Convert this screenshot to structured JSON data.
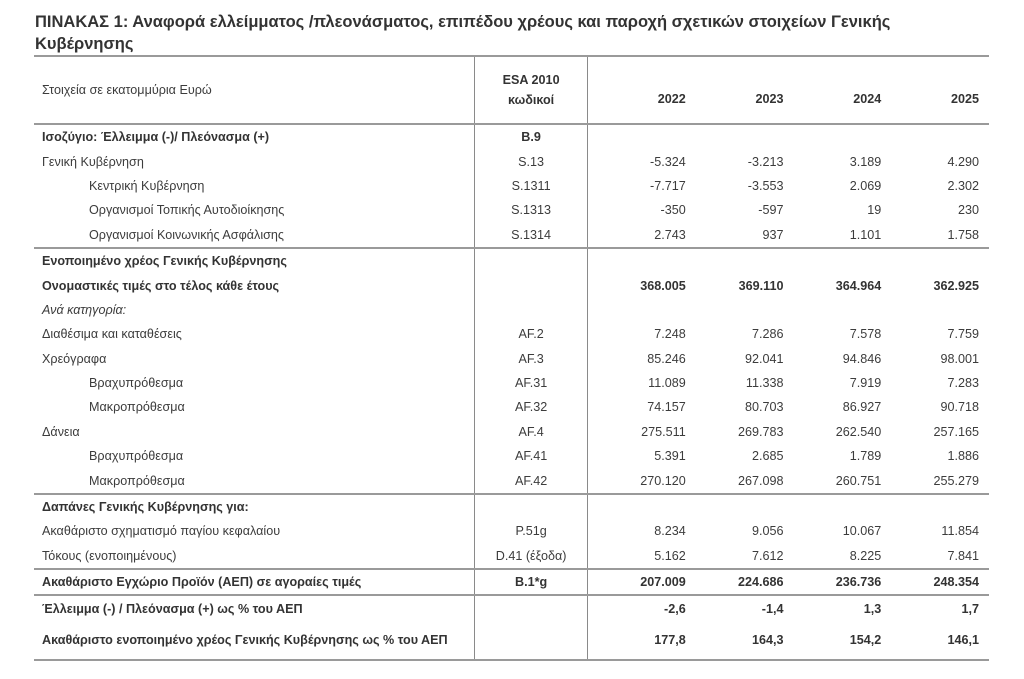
{
  "title": "ΠΙΝΑΚΑΣ 1: Αναφορά ελλείμματος /πλεονάσματος, επιπέδου χρέους και παροχή σχετικών στοιχείων Γενικής Κυβέρνησης",
  "header": {
    "label": "Στοιχεία σε εκατομμύρια Ευρώ",
    "code_line1": "ESA 2010",
    "code_line2": "κωδικοί",
    "years": [
      "2022",
      "2023",
      "2024",
      "2025"
    ]
  },
  "sections": [
    {
      "rows": [
        {
          "label": "Ισοζύγιο: Έλλειμμα (-)/ Πλεόνασμα (+)",
          "code": "B.9",
          "values": [
            "",
            "",
            "",
            ""
          ],
          "bold": true
        },
        {
          "label": "Γενική Κυβέρνηση",
          "code": "S.13",
          "values": [
            "-5.324",
            "-3.213",
            "3.189",
            "4.290"
          ]
        },
        {
          "label": "Κεντρική Κυβέρνηση",
          "code": "S.1311",
          "values": [
            "-7.717",
            "-3.553",
            "2.069",
            "2.302"
          ],
          "indent": true
        },
        {
          "label": "Οργανισμοί Τοπικής Αυτοδιοίκησης",
          "code": "S.1313",
          "values": [
            "-350",
            "-597",
            "19",
            "230"
          ],
          "indent": true
        },
        {
          "label": "Οργανισμοί Κοινωνικής Ασφάλισης",
          "code": "S.1314",
          "values": [
            "2.743",
            "937",
            "1.101",
            "1.758"
          ],
          "indent": true
        }
      ]
    },
    {
      "rows": [
        {
          "label": "Ενοποιημένο χρέος Γενικής Κυβέρνησης",
          "code": "",
          "values": [
            "",
            "",
            "",
            ""
          ],
          "bold": true
        },
        {
          "label": "Ονομαστικές τιμές στο τέλος κάθε έτους",
          "code": "",
          "values": [
            "368.005",
            "369.110",
            "364.964",
            "362.925"
          ],
          "bold": true
        },
        {
          "label": "Ανά κατηγορία:",
          "code": "",
          "values": [
            "",
            "",
            "",
            ""
          ],
          "italic": true
        },
        {
          "label": "Διαθέσιμα και καταθέσεις",
          "code": "AF.2",
          "values": [
            "7.248",
            "7.286",
            "7.578",
            "7.759"
          ]
        },
        {
          "label": "Χρεόγραφα",
          "code": "AF.3",
          "values": [
            "85.246",
            "92.041",
            "94.846",
            "98.001"
          ]
        },
        {
          "label": "Βραχυπρόθεσμα",
          "code": "AF.31",
          "values": [
            "11.089",
            "11.338",
            "7.919",
            "7.283"
          ],
          "indent": true
        },
        {
          "label": "Μακροπρόθεσμα",
          "code": "AF.32",
          "values": [
            "74.157",
            "80.703",
            "86.927",
            "90.718"
          ],
          "indent": true
        },
        {
          "label": "Δάνεια",
          "code": "AF.4",
          "values": [
            "275.511",
            "269.783",
            "262.540",
            "257.165"
          ]
        },
        {
          "label": "Βραχυπρόθεσμα",
          "code": "AF.41",
          "values": [
            "5.391",
            "2.685",
            "1.789",
            "1.886"
          ],
          "indent": true
        },
        {
          "label": "Μακροπρόθεσμα",
          "code": "AF.42",
          "values": [
            "270.120",
            "267.098",
            "260.751",
            "255.279"
          ],
          "indent": true
        }
      ]
    },
    {
      "rows": [
        {
          "label": "Δαπάνες Γενικής Κυβέρνησης για:",
          "code": "",
          "values": [
            "",
            "",
            "",
            ""
          ],
          "bold": true
        },
        {
          "label": "Ακαθάριστο σχηματισμό παγίου κεφαλαίου",
          "code": "P.51g",
          "values": [
            "8.234",
            "9.056",
            "10.067",
            "11.854"
          ]
        },
        {
          "label": "Τόκους (ενοποιημένους)",
          "code": "D.41 (έξοδα)",
          "values": [
            "5.162",
            "7.612",
            "8.225",
            "7.841"
          ]
        }
      ]
    },
    {
      "rows": [
        {
          "label": "Ακαθάριστο Εγχώριο Προϊόν (ΑΕΠ) σε αγοραίες τιμές",
          "code": "B.1*g",
          "values": [
            "207.009",
            "224.686",
            "236.736",
            "248.354"
          ],
          "bold": true
        }
      ]
    },
    {
      "rows": [
        {
          "label": "Έλλειμμα (-) / Πλεόνασμα (+) ως % του ΑΕΠ",
          "code": "",
          "values": [
            "-2,6",
            "-1,4",
            "1,3",
            "1,7"
          ],
          "bold": true
        },
        {
          "label": "Ακαθάριστο ενοποιημένο χρέος Γενικής Κυβέρνησης ως % του ΑΕΠ",
          "code": "",
          "values": [
            "177,8",
            "164,3",
            "154,2",
            "146,1"
          ],
          "bold": true,
          "tall": true
        }
      ]
    }
  ]
}
